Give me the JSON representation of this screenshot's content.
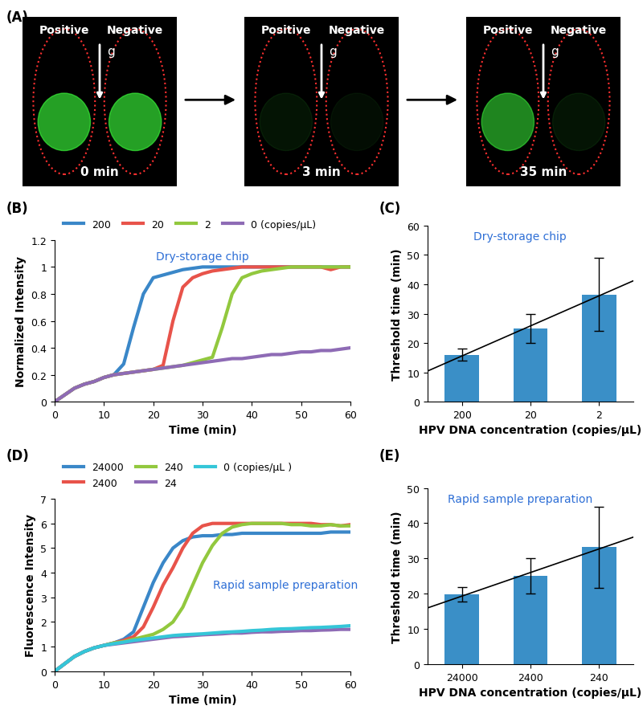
{
  "panel_a": {
    "panel": "(A)",
    "labels": [
      "Positive",
      "Negative"
    ],
    "arrow": "g",
    "frames": [
      "0 min",
      "3 min",
      "35 min"
    ]
  },
  "chart_data": [
    {
      "type": "line",
      "panel": "(B)",
      "annotation": "Dry-storage chip",
      "x": [
        0,
        2,
        4,
        6,
        8,
        10,
        12,
        14,
        16,
        18,
        20,
        22,
        24,
        26,
        28,
        30,
        32,
        34,
        36,
        38,
        40,
        42,
        44,
        46,
        48,
        50,
        52,
        54,
        56,
        58,
        60
      ],
      "series": [
        {
          "name": "200",
          "color": "#3a87c8",
          "values": [
            0,
            0.05,
            0.1,
            0.13,
            0.15,
            0.18,
            0.2,
            0.28,
            0.55,
            0.8,
            0.92,
            0.94,
            0.96,
            0.98,
            0.99,
            1,
            1,
            1,
            1,
            1,
            1,
            1,
            1,
            1,
            1,
            1,
            1,
            1,
            1,
            1,
            1
          ]
        },
        {
          "name": "20",
          "color": "#e8534a",
          "values": [
            0,
            0.05,
            0.1,
            0.13,
            0.15,
            0.18,
            0.2,
            0.21,
            0.22,
            0.23,
            0.24,
            0.27,
            0.6,
            0.85,
            0.92,
            0.95,
            0.97,
            0.98,
            0.99,
            1,
            1,
            1,
            1,
            1,
            1,
            1,
            1,
            1,
            0.98,
            1,
            1
          ]
        },
        {
          "name": "2",
          "color": "#92c83e",
          "values": [
            0,
            0.05,
            0.1,
            0.13,
            0.15,
            0.18,
            0.2,
            0.21,
            0.22,
            0.23,
            0.24,
            0.25,
            0.26,
            0.27,
            0.29,
            0.31,
            0.33,
            0.55,
            0.8,
            0.92,
            0.95,
            0.97,
            0.98,
            0.99,
            1,
            1,
            1,
            1,
            1,
            1,
            1
          ]
        },
        {
          "name": "0 (copies/μL)",
          "color": "#8e6bb5",
          "values": [
            0,
            0.05,
            0.1,
            0.13,
            0.15,
            0.18,
            0.2,
            0.21,
            0.22,
            0.23,
            0.24,
            0.25,
            0.26,
            0.27,
            0.28,
            0.29,
            0.3,
            0.31,
            0.32,
            0.32,
            0.33,
            0.34,
            0.35,
            0.35,
            0.36,
            0.37,
            0.37,
            0.38,
            0.38,
            0.39,
            0.4
          ]
        }
      ],
      "xlim": [
        0,
        60
      ],
      "xticks": [
        0,
        10,
        20,
        30,
        40,
        50,
        60
      ],
      "ylim": [
        0,
        1.2
      ],
      "yticks": [
        0,
        0.2,
        0.4,
        0.6,
        0.8,
        1,
        1.2
      ],
      "x_label": "Time (min)",
      "y_label": "Normalized Intensity",
      "legend": "top"
    },
    {
      "type": "bar",
      "panel": "(C)",
      "annotation": "Dry-storage chip",
      "categories": [
        "200",
        "20",
        "2"
      ],
      "values": [
        16,
        25,
        36.5
      ],
      "errors": [
        2,
        5,
        12.5
      ],
      "color": "#3a8fc7",
      "ylim": [
        0,
        60
      ],
      "yticks": [
        0,
        10,
        20,
        30,
        40,
        50,
        60
      ],
      "x_label": "HPV DNA concentration (copies/μL)",
      "y_label": "Threshold time (min)"
    },
    {
      "type": "line",
      "panel": "(D)",
      "annotation": "Rapid sample preparation",
      "x": [
        0,
        2,
        4,
        6,
        8,
        10,
        12,
        14,
        16,
        18,
        20,
        22,
        24,
        26,
        28,
        30,
        32,
        34,
        36,
        38,
        40,
        42,
        44,
        46,
        48,
        50,
        52,
        54,
        56,
        58,
        60
      ],
      "series": [
        {
          "name": "24000",
          "color": "#3a87c8",
          "values": [
            0,
            0.3,
            0.6,
            0.8,
            0.95,
            1.05,
            1.15,
            1.3,
            1.6,
            2.6,
            3.6,
            4.4,
            5,
            5.3,
            5.45,
            5.5,
            5.5,
            5.55,
            5.55,
            5.6,
            5.6,
            5.6,
            5.6,
            5.6,
            5.6,
            5.6,
            5.6,
            5.6,
            5.65,
            5.65,
            5.65
          ]
        },
        {
          "name": "2400",
          "color": "#e8534a",
          "values": [
            0,
            0.3,
            0.6,
            0.8,
            0.95,
            1.05,
            1.15,
            1.25,
            1.4,
            1.8,
            2.6,
            3.5,
            4.2,
            5,
            5.6,
            5.9,
            6,
            6,
            6,
            6,
            6,
            6,
            6,
            6,
            6,
            6,
            6,
            5.95,
            5.95,
            5.9,
            5.95
          ]
        },
        {
          "name": "240",
          "color": "#92c83e",
          "values": [
            0,
            0.3,
            0.6,
            0.8,
            0.95,
            1.05,
            1.15,
            1.2,
            1.3,
            1.4,
            1.5,
            1.7,
            2,
            2.6,
            3.5,
            4.4,
            5.1,
            5.6,
            5.85,
            5.95,
            6,
            6,
            6,
            6,
            5.95,
            5.95,
            5.9,
            5.9,
            5.95,
            5.9,
            5.9
          ]
        },
        {
          "name": "24",
          "color": "#8e6bb5",
          "values": [
            0,
            0.3,
            0.6,
            0.8,
            0.95,
            1.05,
            1.1,
            1.15,
            1.2,
            1.25,
            1.3,
            1.35,
            1.4,
            1.42,
            1.45,
            1.48,
            1.5,
            1.52,
            1.55,
            1.55,
            1.58,
            1.6,
            1.6,
            1.62,
            1.63,
            1.65,
            1.65,
            1.67,
            1.68,
            1.7,
            1.7
          ]
        },
        {
          "name": "0 (copies/μL )",
          "color": "#35c6d8",
          "values": [
            0,
            0.3,
            0.6,
            0.8,
            0.95,
            1.05,
            1.12,
            1.18,
            1.25,
            1.3,
            1.35,
            1.4,
            1.45,
            1.48,
            1.5,
            1.52,
            1.55,
            1.58,
            1.6,
            1.62,
            1.65,
            1.67,
            1.7,
            1.72,
            1.73,
            1.75,
            1.77,
            1.78,
            1.8,
            1.82,
            1.85
          ]
        }
      ],
      "xlim": [
        0,
        60
      ],
      "xticks": [
        0,
        10,
        20,
        30,
        40,
        50,
        60
      ],
      "ylim": [
        0,
        7
      ],
      "yticks": [
        0,
        1,
        2,
        3,
        4,
        5,
        6,
        7
      ],
      "x_label": "Time (min)",
      "y_label": "Fluorescence Intensity",
      "legend": "top"
    },
    {
      "type": "bar",
      "panel": "(E)",
      "annotation": "Rapid sample preparation",
      "categories": [
        "24000",
        "2400",
        "240"
      ],
      "values": [
        19.8,
        25,
        33.2
      ],
      "errors": [
        2,
        5,
        11.5
      ],
      "color": "#3a8fc7",
      "ylim": [
        0,
        50
      ],
      "yticks": [
        0,
        10,
        20,
        30,
        40,
        50
      ],
      "x_label": "HPV DNA concentration (copies/μL)",
      "y_label": "Threshold time (min)"
    }
  ]
}
